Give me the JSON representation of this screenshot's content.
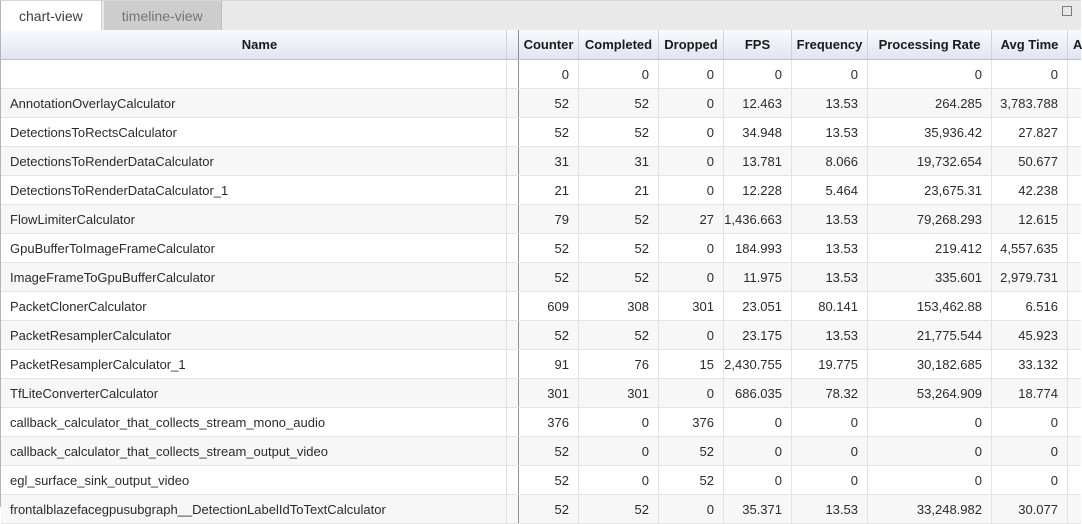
{
  "tabs": [
    {
      "label": "chart-view",
      "active": true
    },
    {
      "label": "timeline-view",
      "active": false
    }
  ],
  "window": {
    "maximize_icon": "square-outline"
  },
  "colors": {
    "header_gradient_top": "#f8fafd",
    "header_gradient_bottom": "#dfe5f0",
    "row_stripe": "#f7f7f7",
    "frozen_divider": "#8f8f8f",
    "inactive_tab_bg": "#cdcdcd",
    "tabbar_bg": "#e9e9e9"
  },
  "table": {
    "columns": [
      {
        "label": "Name"
      },
      {
        "label": "Counter"
      },
      {
        "label": "Completed"
      },
      {
        "label": "Dropped"
      },
      {
        "label": "FPS"
      },
      {
        "label": "Frequency"
      },
      {
        "label": "Processing Rate"
      },
      {
        "label": "Avg Time"
      },
      {
        "label": "A"
      }
    ],
    "rows": [
      {
        "name": "",
        "values": [
          "0",
          "0",
          "0",
          "0",
          "0",
          "0",
          "0"
        ]
      },
      {
        "name": "AnnotationOverlayCalculator",
        "values": [
          "52",
          "52",
          "0",
          "12.463",
          "13.53",
          "264.285",
          "3,783.788"
        ]
      },
      {
        "name": "DetectionsToRectsCalculator",
        "values": [
          "52",
          "52",
          "0",
          "34.948",
          "13.53",
          "35,936.42",
          "27.827"
        ]
      },
      {
        "name": "DetectionsToRenderDataCalculator",
        "values": [
          "31",
          "31",
          "0",
          "13.781",
          "8.066",
          "19,732.654",
          "50.677"
        ]
      },
      {
        "name": "DetectionsToRenderDataCalculator_1",
        "values": [
          "21",
          "21",
          "0",
          "12.228",
          "5.464",
          "23,675.31",
          "42.238"
        ]
      },
      {
        "name": "FlowLimiterCalculator",
        "values": [
          "79",
          "52",
          "27",
          "1,436.663",
          "13.53",
          "79,268.293",
          "12.615"
        ]
      },
      {
        "name": "GpuBufferToImageFrameCalculator",
        "values": [
          "52",
          "52",
          "0",
          "184.993",
          "13.53",
          "219.412",
          "4,557.635"
        ]
      },
      {
        "name": "ImageFrameToGpuBufferCalculator",
        "values": [
          "52",
          "52",
          "0",
          "11.975",
          "13.53",
          "335.601",
          "2,979.731"
        ]
      },
      {
        "name": "PacketClonerCalculator",
        "values": [
          "609",
          "308",
          "301",
          "23.051",
          "80.141",
          "153,462.88",
          "6.516"
        ]
      },
      {
        "name": "PacketResamplerCalculator",
        "values": [
          "52",
          "52",
          "0",
          "23.175",
          "13.53",
          "21,775.544",
          "45.923"
        ]
      },
      {
        "name": "PacketResamplerCalculator_1",
        "values": [
          "91",
          "76",
          "15",
          "2,430.755",
          "19.775",
          "30,182.685",
          "33.132"
        ]
      },
      {
        "name": "TfLiteConverterCalculator",
        "values": [
          "301",
          "301",
          "0",
          "686.035",
          "78.32",
          "53,264.909",
          "18.774"
        ]
      },
      {
        "name": "callback_calculator_that_collects_stream_mono_audio",
        "values": [
          "376",
          "0",
          "376",
          "0",
          "0",
          "0",
          "0"
        ]
      },
      {
        "name": "callback_calculator_that_collects_stream_output_video",
        "values": [
          "52",
          "0",
          "52",
          "0",
          "0",
          "0",
          "0"
        ]
      },
      {
        "name": "egl_surface_sink_output_video",
        "values": [
          "52",
          "0",
          "52",
          "0",
          "0",
          "0",
          "0"
        ]
      },
      {
        "name": "frontalblazefacegpusubgraph__DetectionLabelIdToTextCalculator",
        "values": [
          "52",
          "52",
          "0",
          "35.371",
          "13.53",
          "33,248.982",
          "30.077"
        ]
      }
    ]
  }
}
